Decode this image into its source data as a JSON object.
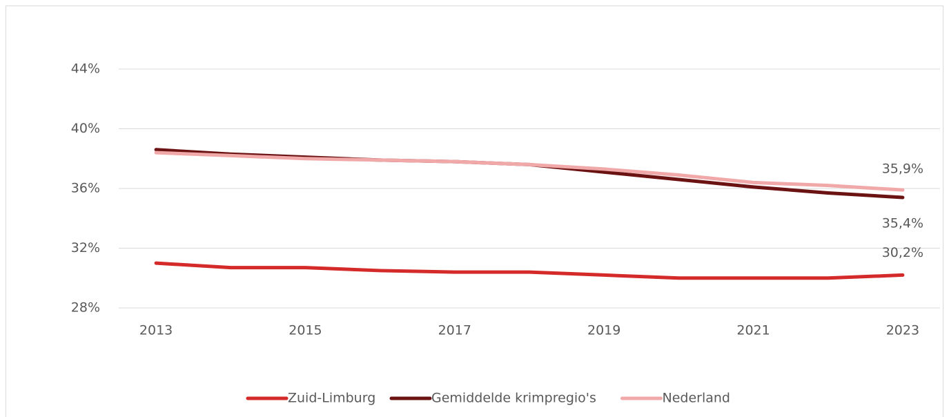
{
  "chart_data": {
    "type": "line",
    "x": [
      2013,
      2014,
      2015,
      2016,
      2017,
      2018,
      2019,
      2020,
      2021,
      2022,
      2023
    ],
    "series": [
      {
        "name": "Zuid-Limburg",
        "color": "#d42a2a",
        "values": [
          31.0,
          30.7,
          30.7,
          30.5,
          30.4,
          30.4,
          30.2,
          30.0,
          30.0,
          30.0,
          30.2
        ],
        "value_labels": [
          null,
          null,
          null,
          null,
          null,
          null,
          null,
          null,
          null,
          null,
          "30,2%"
        ]
      },
      {
        "name": "Gemiddelde krimpregio's",
        "color": "#6b1212",
        "values": [
          38.6,
          38.3,
          38.1,
          37.9,
          37.8,
          37.6,
          37.1,
          36.6,
          36.1,
          35.7,
          35.4
        ],
        "value_labels": [
          null,
          null,
          null,
          null,
          null,
          null,
          null,
          null,
          null,
          null,
          "35,4%"
        ]
      },
      {
        "name": "Nederland",
        "color": "#f0a8a8",
        "values": [
          38.4,
          38.2,
          38.0,
          37.9,
          37.8,
          37.6,
          37.3,
          36.9,
          36.4,
          36.2,
          35.9
        ],
        "value_labels": [
          null,
          null,
          null,
          null,
          null,
          null,
          null,
          null,
          null,
          null,
          "35,9%"
        ]
      }
    ],
    "xlim": [
      2012.5,
      2023.5
    ],
    "xticks": [
      2013,
      2015,
      2017,
      2019,
      2021,
      2023
    ],
    "ylim": [
      28,
      44
    ],
    "yticks": [
      {
        "value": 28,
        "label": "28%"
      },
      {
        "value": 32,
        "label": "32%"
      },
      {
        "value": 36,
        "label": "36%"
      },
      {
        "value": 40,
        "label": "40%"
      },
      {
        "value": 44,
        "label": "44%"
      }
    ],
    "grid": true,
    "legend": "bottom"
  }
}
